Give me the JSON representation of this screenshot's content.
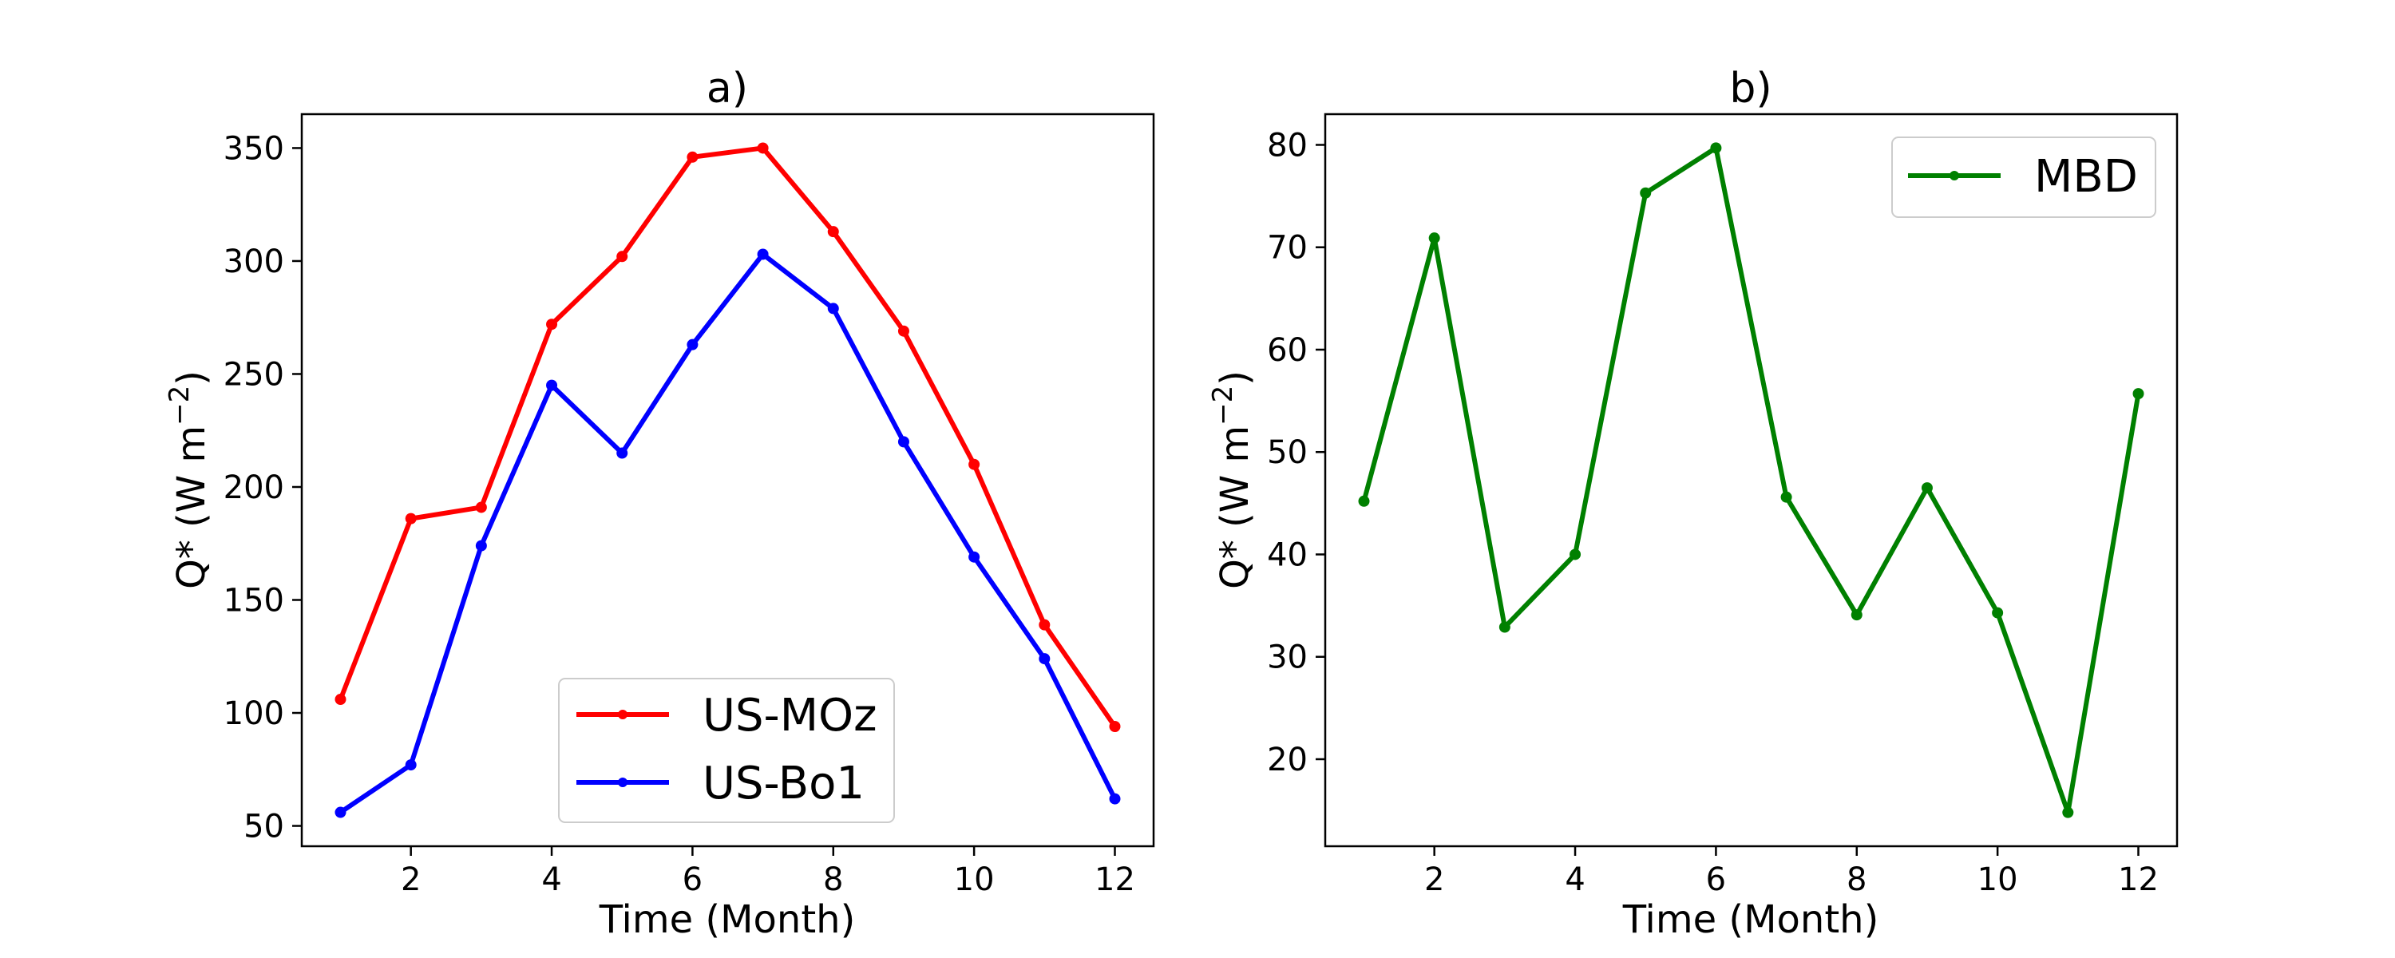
{
  "chart_data": [
    {
      "type": "line",
      "title": "a)",
      "xlabel": "Time (Month)",
      "ylabel": "Q* (W m",
      "ylabel_exp": "−2",
      "ylabel_close": ")",
      "xlim": [
        0.45,
        12.55
      ],
      "ylim": [
        41,
        365
      ],
      "xticks": [
        2,
        4,
        6,
        8,
        10,
        12
      ],
      "yticks": [
        50,
        100,
        150,
        200,
        250,
        300,
        350
      ],
      "legend_position": "lower-center",
      "x": [
        1,
        2,
        3,
        4,
        5,
        6,
        7,
        8,
        9,
        10,
        11,
        12
      ],
      "series": [
        {
          "name": "US-MOz",
          "color": "#ff0000",
          "values": [
            106,
            186,
            191,
            272,
            302,
            346,
            350,
            313,
            269,
            210,
            139,
            94
          ]
        },
        {
          "name": "US-Bo1",
          "color": "#0000ff",
          "values": [
            56,
            77,
            174,
            245,
            215,
            263,
            303,
            279,
            220,
            169,
            124,
            62
          ]
        }
      ]
    },
    {
      "type": "line",
      "title": "b)",
      "xlabel": "Time (Month)",
      "ylabel": "Q* (W m",
      "ylabel_exp": "−2",
      "ylabel_close": ")",
      "xlim": [
        0.45,
        12.55
      ],
      "ylim": [
        11.5,
        83
      ],
      "xticks": [
        2,
        4,
        6,
        8,
        10,
        12
      ],
      "yticks": [
        20,
        30,
        40,
        50,
        60,
        70,
        80
      ],
      "legend_position": "upper-right",
      "x": [
        1,
        2,
        3,
        4,
        5,
        6,
        7,
        8,
        9,
        10,
        11,
        12
      ],
      "series": [
        {
          "name": "MBD",
          "color": "#008000",
          "values": [
            45.2,
            70.9,
            32.9,
            40.0,
            75.3,
            79.7,
            45.6,
            34.1,
            46.5,
            34.3,
            14.8,
            55.7
          ]
        }
      ]
    }
  ]
}
